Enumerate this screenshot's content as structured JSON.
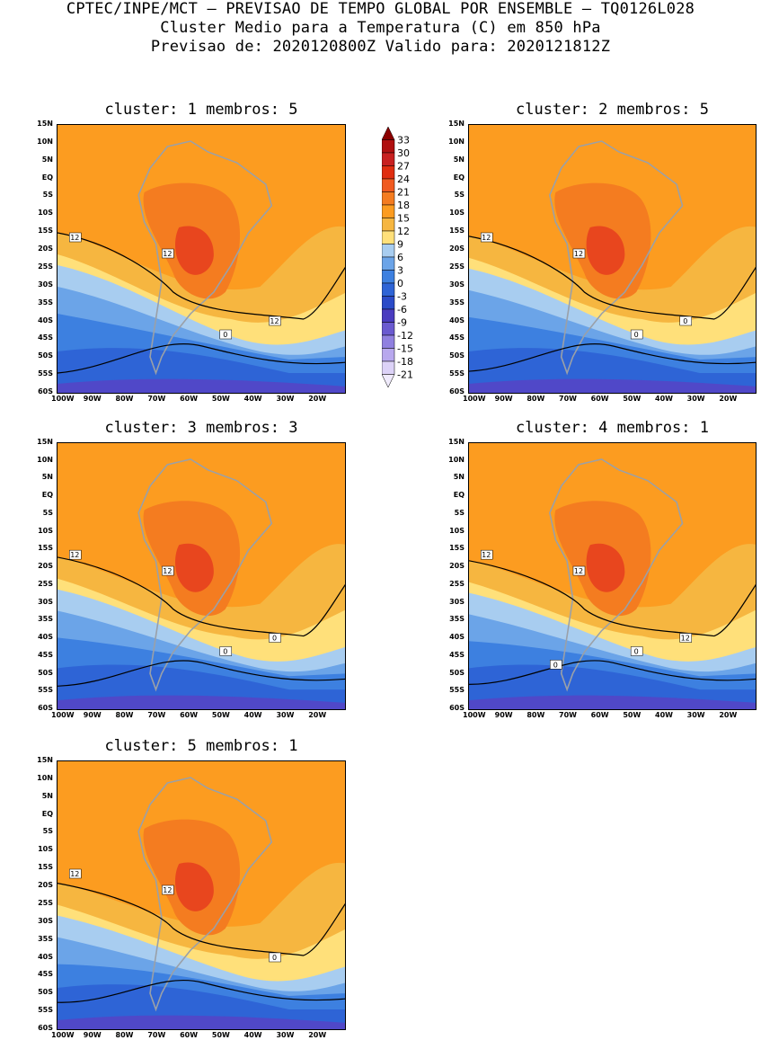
{
  "header": {
    "line1": "CPTEC/INPE/MCT – PREVISAO DE TEMPO GLOBAL POR ENSEMBLE – TQ0126L028",
    "line2": "Cluster Medio para a Temperatura (C) em 850 hPa",
    "line3": "Previsao de: 2020120800Z   Valido para: 2020121812Z"
  },
  "panels": [
    {
      "title": "cluster: 1   membros: 5",
      "contour_labels": [
        "12",
        "12",
        "12",
        "0"
      ]
    },
    {
      "title": "cluster: 2   membros: 5",
      "contour_labels": [
        "12",
        "12",
        "0",
        "0"
      ]
    },
    {
      "title": "cluster: 3   membros: 3",
      "contour_labels": [
        "12",
        "12",
        "0",
        "0"
      ]
    },
    {
      "title": "cluster: 4   membros: 1",
      "contour_labels": [
        "12",
        "12",
        "12",
        "0",
        "0"
      ]
    },
    {
      "title": "cluster: 5   membros: 1",
      "contour_labels": [
        "12",
        "12",
        "0"
      ]
    }
  ],
  "axes": {
    "lat_ticks": [
      "15N",
      "10N",
      "5N",
      "EQ",
      "5S",
      "10S",
      "15S",
      "20S",
      "25S",
      "30S",
      "35S",
      "40S",
      "45S",
      "50S",
      "55S",
      "60S"
    ],
    "lon_ticks": [
      "100W",
      "90W",
      "80W",
      "70W",
      "60W",
      "50W",
      "40W",
      "30W",
      "20W"
    ]
  },
  "colorbar": {
    "labels": [
      "33",
      "30",
      "27",
      "24",
      "21",
      "18",
      "15",
      "12",
      "9",
      "6",
      "3",
      "0",
      "-3",
      "-6",
      "-9",
      "-12",
      "-15",
      "-18",
      "-21"
    ],
    "colors": [
      "#8b0000",
      "#b01010",
      "#c82020",
      "#e02d10",
      "#f05a20",
      "#f47c20",
      "#fc9c20",
      "#f6b640",
      "#ffe07a",
      "#a8cdf0",
      "#6ba4e8",
      "#3d80e0",
      "#2e64d6",
      "#2b4bc8",
      "#4a3cc0",
      "#6a5ad0",
      "#9080e0",
      "#b8a8ee",
      "#dcd2f7",
      "#f0ebfc"
    ]
  },
  "colors": {
    "hot": "#e8461e",
    "warm": "#f47c20",
    "orange": "#fc9c20",
    "light_orange": "#f6b640",
    "yellow": "#ffe07a",
    "light_blue": "#a8cdf0",
    "mid_blue": "#6ba4e8",
    "blue": "#3d80e0",
    "deep_blue": "#2e64d6",
    "violet": "#5048c8"
  }
}
